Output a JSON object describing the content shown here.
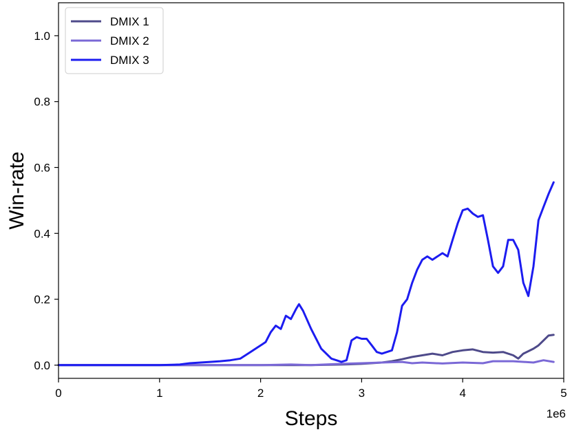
{
  "chart_data": {
    "type": "line",
    "title": "",
    "xlabel": "Steps",
    "ylabel": "Win-rate",
    "x_offset_label": "1e6",
    "xlim": [
      0,
      5000000
    ],
    "ylim": [
      -0.04,
      1.1
    ],
    "x_ticks": [
      0,
      1000000,
      2000000,
      3000000,
      4000000,
      5000000
    ],
    "x_tick_labels": [
      "0",
      "1",
      "2",
      "3",
      "4",
      "5"
    ],
    "y_ticks": [
      0.0,
      0.2,
      0.4,
      0.6,
      0.8,
      1.0
    ],
    "y_tick_labels": [
      "0.0",
      "0.2",
      "0.4",
      "0.6",
      "0.8",
      "1.0"
    ],
    "grid": false,
    "legend_position": "top-left",
    "series": [
      {
        "name": "DMIX 1",
        "color": "#4e4a8a",
        "x": [
          0,
          500000,
          1000000,
          1500000,
          2000000,
          2500000,
          2800000,
          3000000,
          3200000,
          3300000,
          3400000,
          3500000,
          3600000,
          3700000,
          3800000,
          3900000,
          4000000,
          4100000,
          4200000,
          4300000,
          4400000,
          4500000,
          4550000,
          4600000,
          4700000,
          4750000,
          4800000,
          4850000,
          4900000
        ],
        "y": [
          0.0,
          0.0,
          0.0,
          0.0,
          0.0,
          0.0,
          0.002,
          0.004,
          0.008,
          0.012,
          0.018,
          0.025,
          0.03,
          0.035,
          0.03,
          0.04,
          0.045,
          0.048,
          0.04,
          0.038,
          0.04,
          0.03,
          0.02,
          0.035,
          0.05,
          0.06,
          0.075,
          0.09,
          0.092
        ]
      },
      {
        "name": "DMIX 2",
        "color": "#7a68d6",
        "x": [
          0,
          500000,
          1000000,
          1500000,
          2000000,
          2300000,
          2500000,
          2800000,
          3000000,
          3200000,
          3400000,
          3500000,
          3600000,
          3800000,
          4000000,
          4200000,
          4300000,
          4500000,
          4700000,
          4800000,
          4900000
        ],
        "y": [
          0.0,
          0.0,
          0.0,
          0.0,
          0.0,
          0.002,
          0.0,
          0.004,
          0.006,
          0.008,
          0.01,
          0.006,
          0.008,
          0.005,
          0.008,
          0.006,
          0.012,
          0.012,
          0.008,
          0.015,
          0.01
        ]
      },
      {
        "name": "DMIX 3",
        "color": "#1c1cf0",
        "x": [
          0,
          400000,
          1000000,
          1200000,
          1300000,
          1500000,
          1600000,
          1700000,
          1800000,
          1900000,
          2000000,
          2050000,
          2100000,
          2150000,
          2200000,
          2250000,
          2300000,
          2350000,
          2380000,
          2420000,
          2500000,
          2600000,
          2700000,
          2800000,
          2850000,
          2900000,
          2950000,
          3000000,
          3050000,
          3100000,
          3150000,
          3200000,
          3300000,
          3350000,
          3400000,
          3450000,
          3500000,
          3550000,
          3600000,
          3650000,
          3700000,
          3750000,
          3800000,
          3850000,
          3900000,
          3950000,
          4000000,
          4050000,
          4100000,
          4150000,
          4200000,
          4250000,
          4300000,
          4350000,
          4400000,
          4450000,
          4500000,
          4550000,
          4600000,
          4650000,
          4700000,
          4750000,
          4800000,
          4850000,
          4900000
        ],
        "y": [
          0.0,
          0.0,
          0.0,
          0.002,
          0.006,
          0.01,
          0.012,
          0.015,
          0.02,
          0.04,
          0.06,
          0.07,
          0.1,
          0.12,
          0.11,
          0.15,
          0.14,
          0.17,
          0.185,
          0.165,
          0.11,
          0.05,
          0.02,
          0.01,
          0.015,
          0.075,
          0.085,
          0.08,
          0.08,
          0.06,
          0.04,
          0.035,
          0.045,
          0.1,
          0.18,
          0.2,
          0.25,
          0.29,
          0.32,
          0.33,
          0.32,
          0.33,
          0.34,
          0.33,
          0.38,
          0.43,
          0.47,
          0.475,
          0.46,
          0.45,
          0.455,
          0.38,
          0.3,
          0.28,
          0.3,
          0.38,
          0.38,
          0.35,
          0.25,
          0.21,
          0.3,
          0.44,
          0.48,
          0.52,
          0.555
        ]
      }
    ]
  }
}
